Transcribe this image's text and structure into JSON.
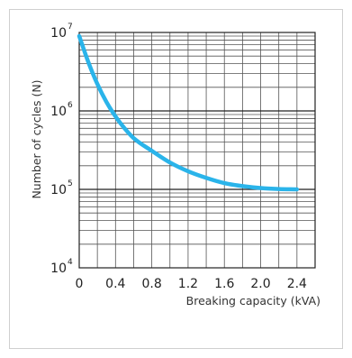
{
  "chart_data": {
    "type": "line",
    "title": "",
    "xlabel": "Breaking capacity (kVA)",
    "ylabel": "Number of cycles (N)",
    "x_scale": "linear",
    "y_scale": "log",
    "xlim": [
      0,
      2.6
    ],
    "ylim": [
      10000,
      10000000
    ],
    "x_ticks": [
      0,
      0.4,
      0.8,
      1.2,
      1.6,
      2.0,
      2.4
    ],
    "x_tick_labels": [
      "0",
      "0.4",
      "0.8",
      "1.2",
      "1.6",
      "2.0",
      "2.4"
    ],
    "y_tick_base": "10",
    "y_tick_exponents": [
      "4",
      "5",
      "6",
      "7"
    ],
    "grid": true,
    "curve_color": "#2ab4ea",
    "series": [
      {
        "x": [
          0,
          0.1,
          0.2,
          0.3,
          0.4,
          0.5,
          0.6,
          0.8,
          1.0,
          1.2,
          1.4,
          1.6,
          1.8,
          2.0,
          2.2,
          2.4
        ],
        "y": [
          9000000,
          4200000,
          2200000,
          1300000,
          850000,
          600000,
          450000,
          310000,
          220000,
          170000,
          140000,
          120000,
          110000,
          104000,
          101000,
          100000
        ]
      }
    ]
  }
}
